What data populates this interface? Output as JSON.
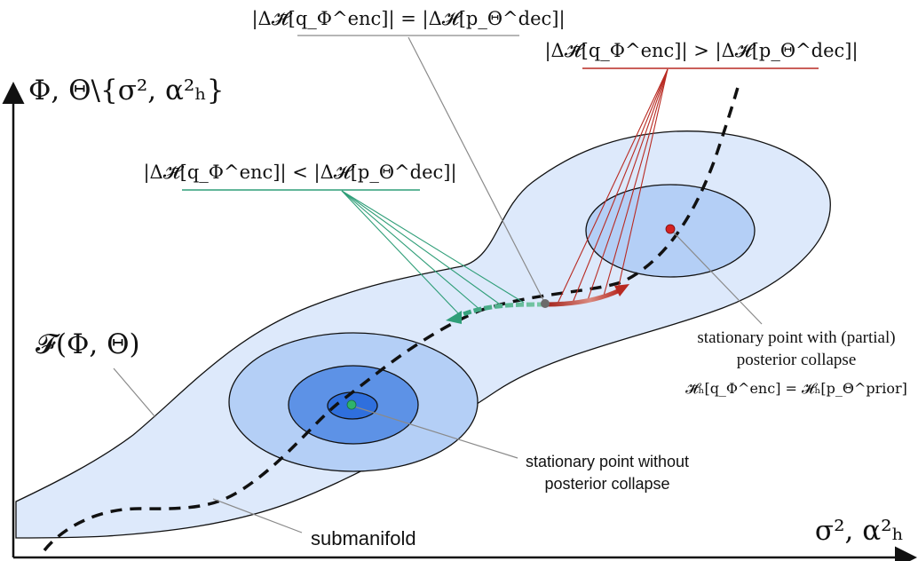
{
  "labels": {
    "y_axis": "Φ, Θ\\{σ², α²ₕ}",
    "x_axis": "σ², α²ₕ",
    "objective": "𝓕(Φ, Θ)",
    "submanifold": "submanifold",
    "eq_condition": "|Δ𝓗̄[q_Φ^enc]| = |Δ𝓗[p_Θ^dec]|",
    "greater_condition": "|Δ𝓗̄[q_Φ^enc]| > |Δ𝓗[p_Θ^dec]|",
    "less_condition": "|Δ𝓗̄[q_Φ^enc]| < |Δ𝓗[p_Θ^dec]|",
    "collapse_point_line1": "stationary point with (partial)",
    "collapse_point_line2": "posterior collapse",
    "collapse_point_formula": "𝓗̄ₕ[q_Φ^enc] = 𝓗ₕ[p_Θ^prior]",
    "no_collapse_line1": "stationary point without",
    "no_collapse_line2": "posterior collapse"
  },
  "colors": {
    "outer_region": "#dde9fb",
    "mid_region": "#b4cff6",
    "inner_region": "#8cb4ef",
    "core_region": "#5d92e6",
    "center_region": "#2f6fdd",
    "green": "#2f9e78",
    "red": "#b82a22",
    "gray": "#8a8a8a",
    "collapse_point": "#d42222",
    "no_collapse_point": "#2fb36b",
    "saddle_point": "#6b6b6b"
  }
}
